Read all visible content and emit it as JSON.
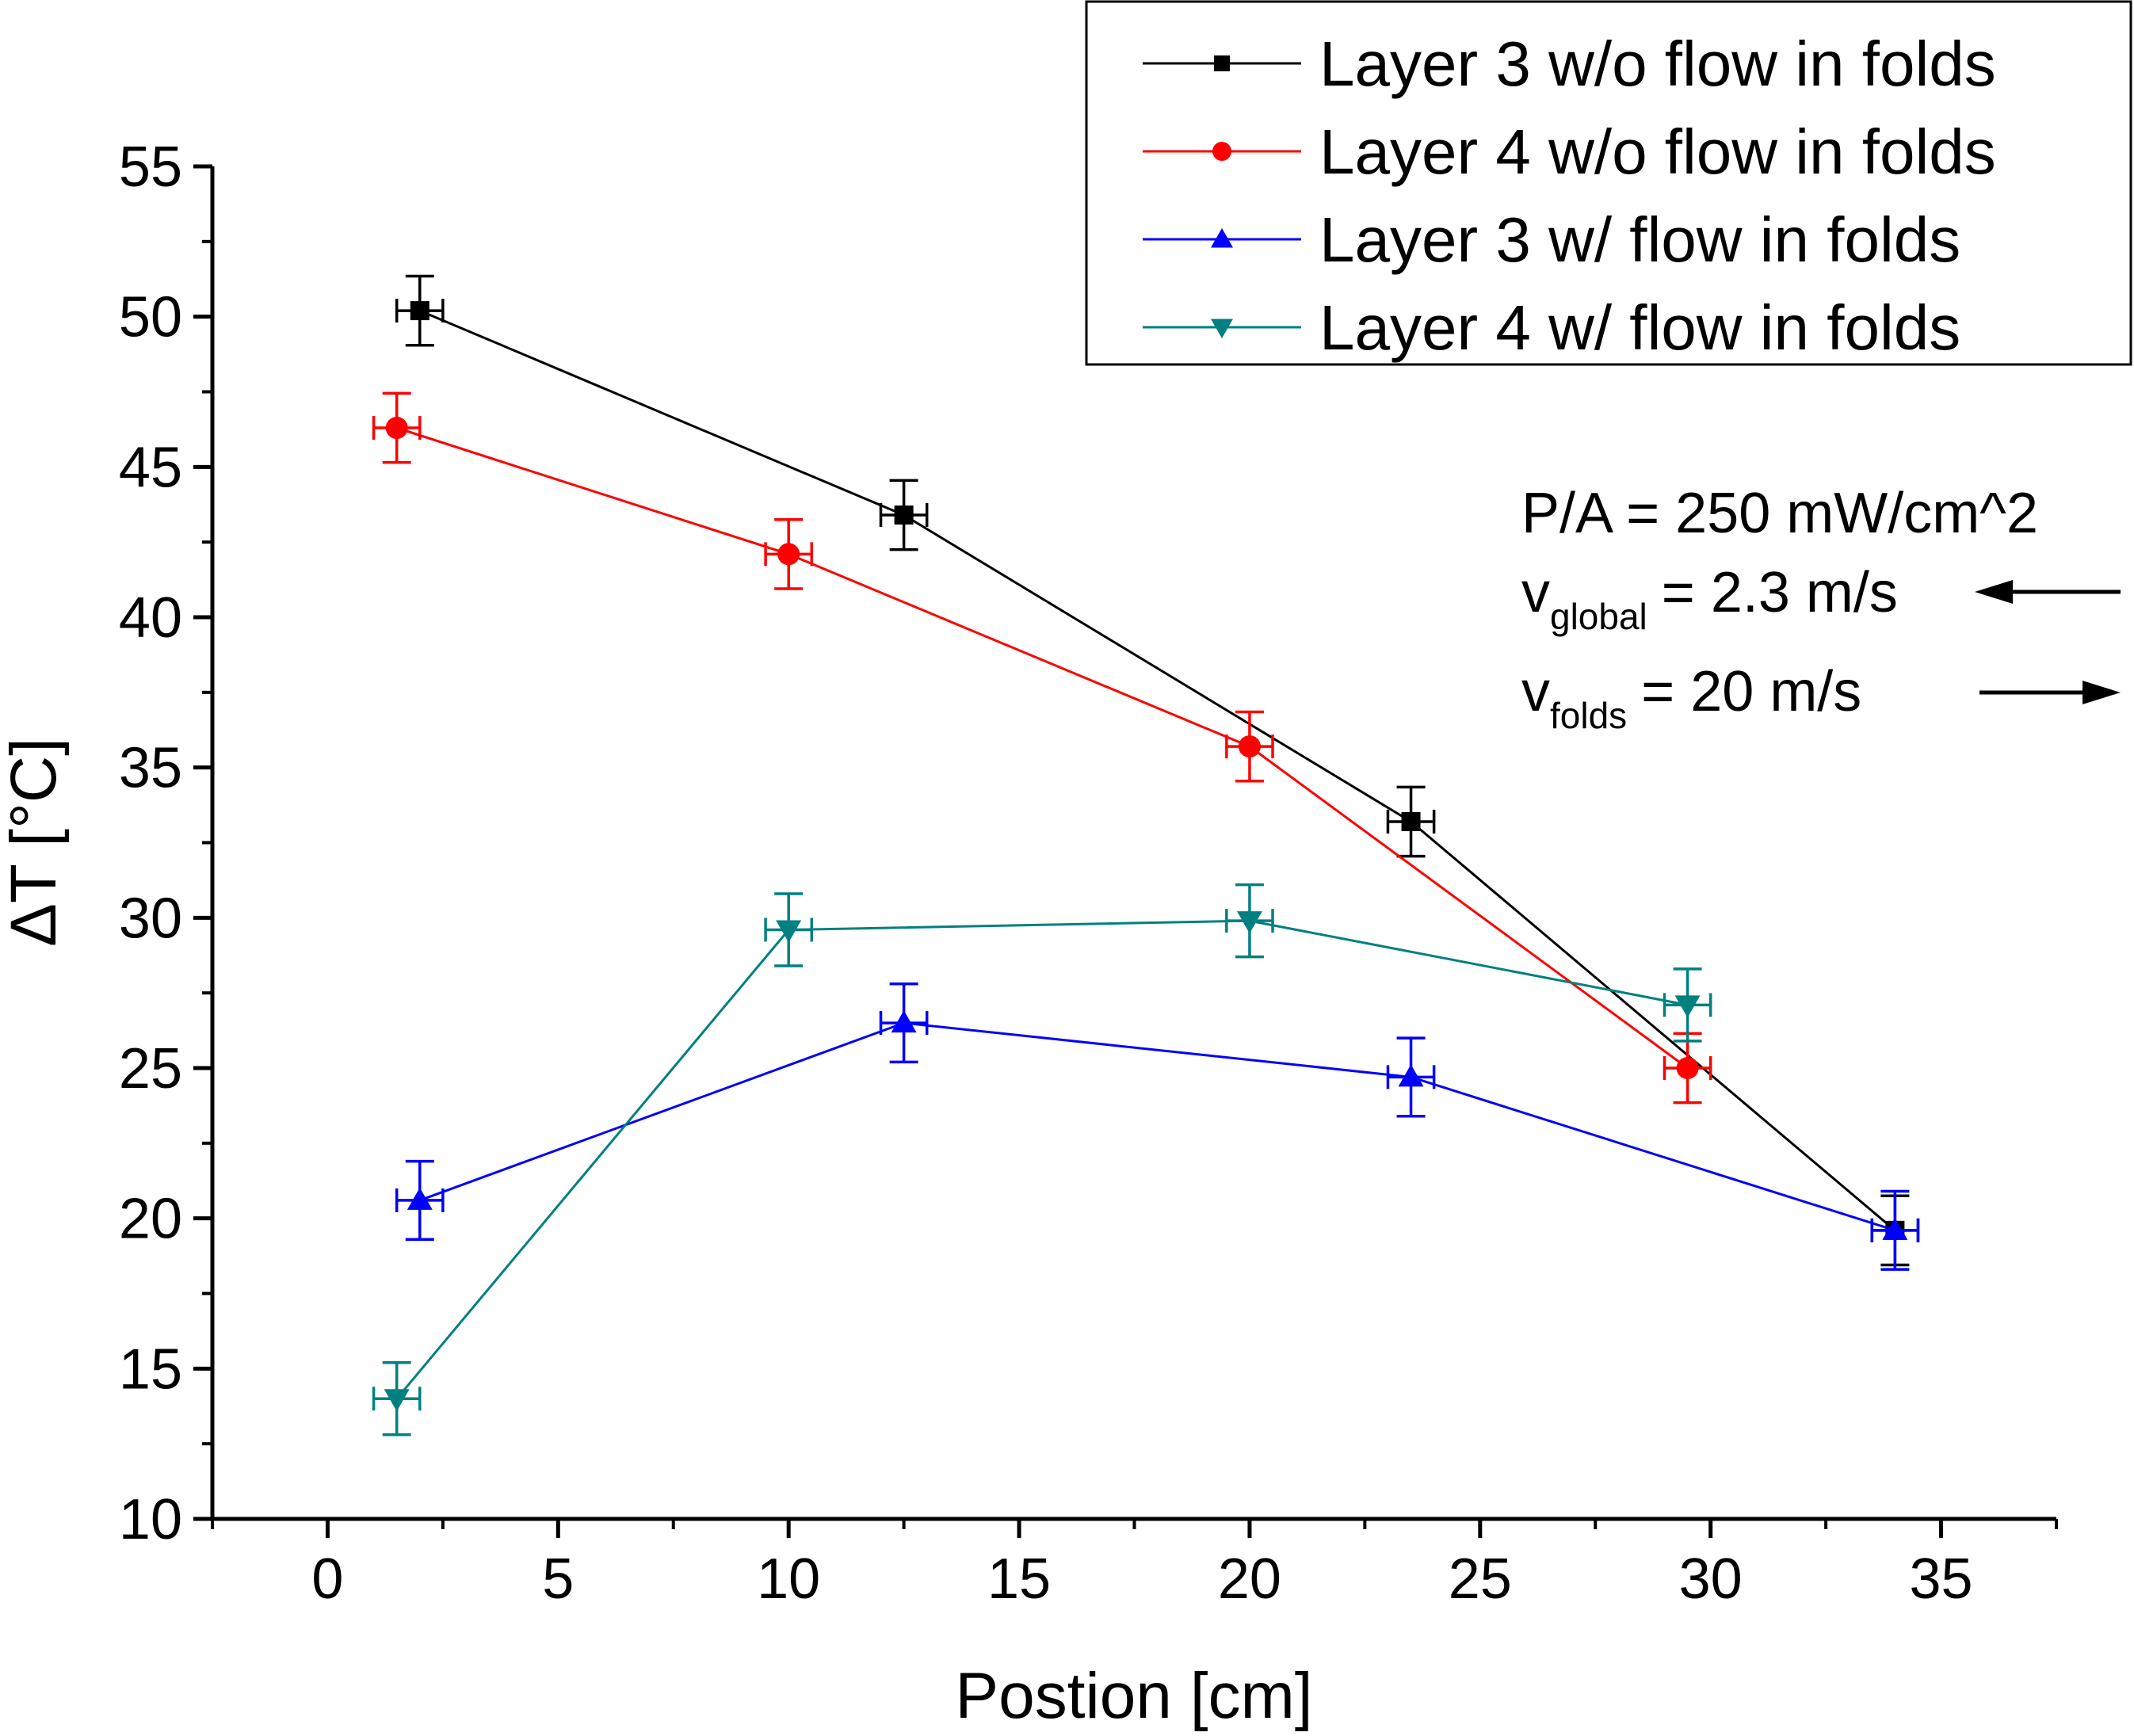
{
  "chart_data": {
    "type": "line",
    "xlabel": "Postion [cm]",
    "ylabel": "ΔT [°C]",
    "xlim": [
      -2.5,
      37.5
    ],
    "ylim": [
      10,
      55
    ],
    "xticks": [
      0,
      5,
      10,
      15,
      20,
      25,
      30,
      35
    ],
    "yticks": [
      10,
      15,
      20,
      25,
      30,
      35,
      40,
      45,
      50,
      55
    ],
    "grid": false,
    "legend_position": "top-right",
    "series": [
      {
        "name": "Layer 3 w/o flow in folds",
        "color": "#000000",
        "marker": "square",
        "x": [
          2,
          12.5,
          23.5,
          34
        ],
        "y": [
          50.2,
          43.4,
          33.2,
          19.6
        ],
        "x_err": 0.5,
        "y_err": 1.15
      },
      {
        "name": "Layer 4 w/o flow in folds",
        "color": "#ff0000",
        "marker": "circle",
        "x": [
          1.5,
          10,
          20,
          29.5
        ],
        "y": [
          46.3,
          42.1,
          35.7,
          25.0
        ],
        "x_err": 0.5,
        "y_err": 1.15
      },
      {
        "name": "Layer 3 w/ flow in folds",
        "color": "#0000ff",
        "marker": "triangle-up",
        "x": [
          2,
          12.5,
          23.5,
          34
        ],
        "y": [
          20.6,
          26.5,
          24.7,
          19.6
        ],
        "x_err": 0.5,
        "y_err": 1.3
      },
      {
        "name": "Layer 4 w/ flow in folds",
        "color": "#008080",
        "marker": "triangle-down",
        "x": [
          1.5,
          10,
          20,
          29.5
        ],
        "y": [
          14.0,
          29.6,
          29.9,
          27.1
        ],
        "x_err": 0.5,
        "y_err": 1.2
      }
    ],
    "annotations": {
      "power_density": "P/A = 250 mW/cm^2",
      "v_global_prefix": "v",
      "v_global_sub": "global",
      "v_global_value": "= 2.3 m/s",
      "v_global_arrow": "left",
      "v_folds_prefix": "v",
      "v_folds_sub": "folds",
      "v_folds_value": "= 20 m/s",
      "v_folds_arrow": "right"
    }
  }
}
